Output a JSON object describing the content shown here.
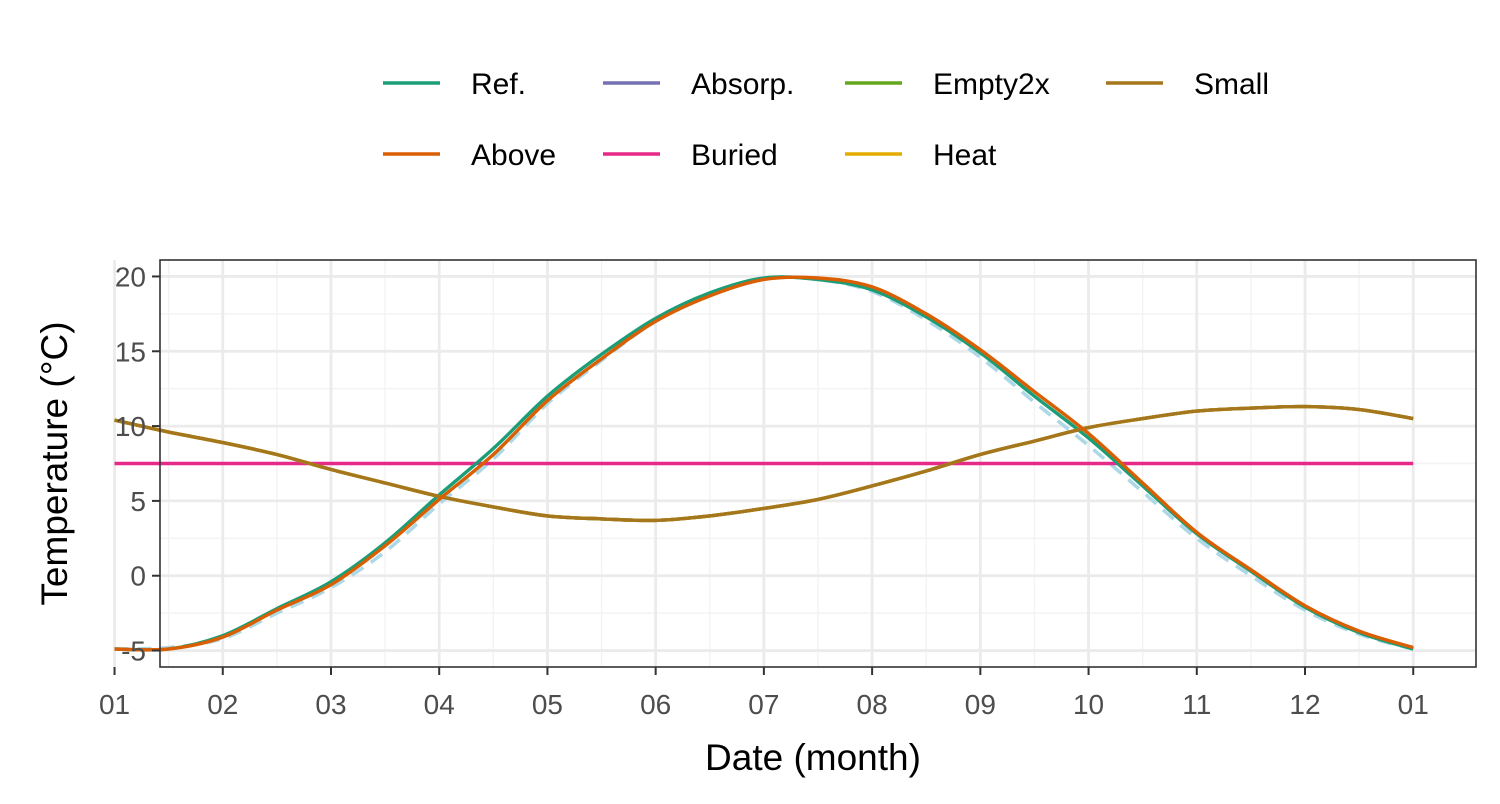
{
  "chart_data": {
    "type": "line",
    "xlabel": "Date (month)",
    "ylabel": "Temperature (°C)",
    "x_tick_labels": [
      "01",
      "02",
      "03",
      "04",
      "05",
      "06",
      "07",
      "08",
      "09",
      "10",
      "11",
      "12",
      "01"
    ],
    "y_ticks": [
      -5,
      0,
      5,
      10,
      15,
      20
    ],
    "y_tick_labels": [
      "-5",
      "0",
      "5",
      "10",
      "15",
      "20"
    ],
    "ylim": [
      -6.1,
      21.1
    ],
    "xlim_months": [
      0.42,
      12.58
    ],
    "grid": true,
    "legend_position": "top",
    "x": [
      0.0,
      0.5,
      1.0,
      1.5,
      2.0,
      2.5,
      3.0,
      3.5,
      4.0,
      4.5,
      5.0,
      5.5,
      6.0,
      6.5,
      7.0,
      7.5,
      8.0,
      8.5,
      9.0,
      9.5,
      10.0,
      10.5,
      11.0,
      11.5,
      12.0
    ],
    "series": [
      {
        "name": "Ref.",
        "color": "#1B9E77",
        "dash": "solid",
        "values": [
          -4.9,
          -4.9,
          -4.0,
          -2.2,
          -0.4,
          2.2,
          5.4,
          8.5,
          12.0,
          14.8,
          17.2,
          18.9,
          19.9,
          19.8,
          19.1,
          17.3,
          14.9,
          12.0,
          9.2,
          6.0,
          2.8,
          0.3,
          -2.1,
          -3.8,
          -4.9
        ]
      },
      {
        "name": "Above",
        "color": "#D95F02",
        "dash": "solid",
        "values": [
          -4.9,
          -4.9,
          -4.1,
          -2.3,
          -0.6,
          2.0,
          5.1,
          8.1,
          11.7,
          14.5,
          17.0,
          18.7,
          19.8,
          19.9,
          19.3,
          17.5,
          15.1,
          12.3,
          9.5,
          6.2,
          2.9,
          0.4,
          -2.0,
          -3.7,
          -4.8
        ]
      },
      {
        "name": "Absorp.",
        "color": "#7570B3",
        "dash": "solid",
        "values": [
          10.4,
          9.6,
          8.9,
          8.1,
          7.1,
          6.2,
          5.3,
          4.6,
          4.0,
          3.8,
          3.7,
          4.0,
          4.5,
          5.1,
          6.0,
          7.0,
          8.1,
          9.0,
          9.9,
          10.5,
          11.0,
          11.2,
          11.3,
          11.1,
          10.5
        ]
      },
      {
        "name": "Buried",
        "color": "#E7298A",
        "dash": "solid",
        "values": [
          7.5,
          7.5,
          7.5,
          7.5,
          7.5,
          7.5,
          7.5,
          7.5,
          7.5,
          7.5,
          7.5,
          7.5,
          7.5,
          7.5,
          7.5,
          7.5,
          7.5,
          7.5,
          7.5,
          7.5,
          7.5,
          7.5,
          7.5,
          7.5,
          7.5
        ]
      },
      {
        "name": "Empty2x",
        "color": "#66A61E",
        "dash": "solid",
        "values": [
          10.4,
          9.6,
          8.9,
          8.1,
          7.1,
          6.2,
          5.3,
          4.6,
          4.0,
          3.8,
          3.7,
          4.0,
          4.5,
          5.1,
          6.0,
          7.0,
          8.1,
          9.0,
          9.9,
          10.5,
          11.0,
          11.2,
          11.3,
          11.1,
          10.5
        ]
      },
      {
        "name": "Heat",
        "color": "#E6AB02",
        "dash": "solid",
        "values": [
          10.4,
          9.6,
          8.9,
          8.1,
          7.1,
          6.2,
          5.3,
          4.6,
          4.0,
          3.8,
          3.7,
          4.0,
          4.5,
          5.1,
          6.0,
          7.0,
          8.1,
          9.0,
          9.9,
          10.5,
          11.0,
          11.2,
          11.3,
          11.1,
          10.5
        ]
      },
      {
        "name": "Small",
        "color": "#A6761D",
        "dash": "solid",
        "values": [
          10.4,
          9.6,
          8.9,
          8.1,
          7.1,
          6.2,
          5.3,
          4.6,
          4.0,
          3.8,
          3.7,
          4.0,
          4.5,
          5.1,
          6.0,
          7.0,
          8.1,
          9.0,
          9.9,
          10.5,
          11.0,
          11.2,
          11.3,
          11.1,
          10.5
        ]
      }
    ],
    "reference_curve": {
      "color": "#ADD8E6",
      "dash": "dashed",
      "values": [
        -4.9,
        -4.8,
        -4.2,
        -2.5,
        -0.8,
        1.6,
        4.8,
        7.8,
        11.5,
        14.4,
        17.0,
        18.8,
        19.9,
        19.8,
        19.0,
        17.1,
        14.6,
        11.6,
        8.7,
        5.6,
        2.5,
        0.0,
        -2.3,
        -3.9,
        -4.9
      ]
    },
    "legend_layout": [
      [
        "Ref.",
        "Absorp.",
        "Empty2x",
        "Small"
      ],
      [
        "Above",
        "Buried",
        "Heat"
      ]
    ],
    "colors": {
      "panel_border": "#333333",
      "grid_major": "#EBEBEB",
      "grid_minor": "#F3F3F3",
      "tick_text": "#4D4D4D"
    }
  }
}
